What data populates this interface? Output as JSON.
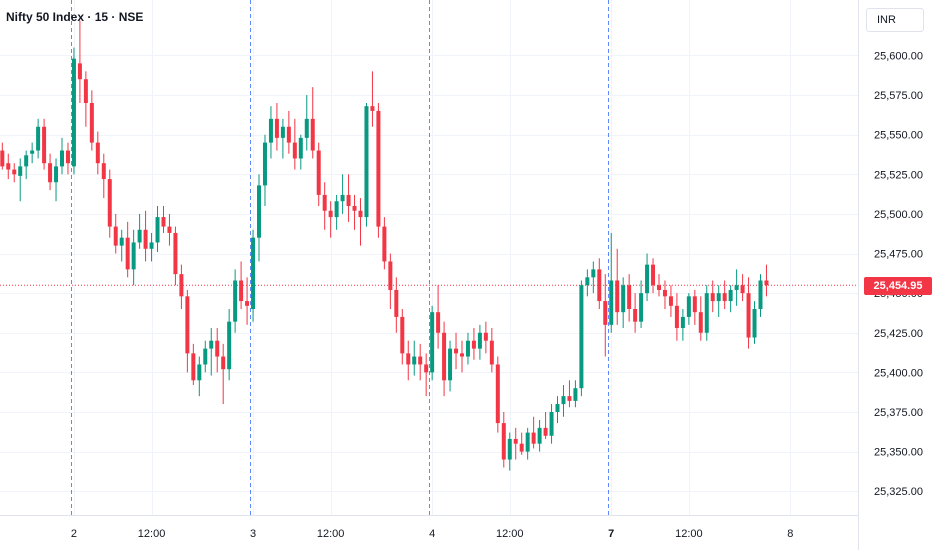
{
  "header": {
    "title": "Nifty 50 Index · 15 · NSE",
    "currency": "INR"
  },
  "last_price_label": "25,454.95",
  "colors": {
    "up": "#089981",
    "down": "#f23645",
    "grid": "#f0f3fa",
    "session_line": "#2962ff",
    "axis_text": "#131722",
    "last_price_line": "#f23645"
  },
  "chart_data": {
    "type": "candlestick",
    "ylim": [
      25310,
      25635
    ],
    "y_ticks": [
      "25,325.00",
      "25,350.00",
      "25,375.00",
      "25,400.00",
      "25,425.00",
      "25,450.00",
      "25,475.00",
      "25,500.00",
      "25,525.00",
      "25,550.00",
      "25,575.00",
      "25,600.00"
    ],
    "y_tick_values": [
      25325,
      25350,
      25375,
      25400,
      25425,
      25450,
      25475,
      25500,
      25525,
      25550,
      25575,
      25600
    ],
    "x_ticks": [
      {
        "label": "2",
        "bar": 12,
        "bold": false
      },
      {
        "label": "12:00",
        "bar": 25,
        "bold": false
      },
      {
        "label": "3",
        "bar": 42,
        "bold": false
      },
      {
        "label": "12:00",
        "bar": 55,
        "bold": false
      },
      {
        "label": "4",
        "bar": 72,
        "bold": false
      },
      {
        "label": "12:00",
        "bar": 85,
        "bold": false
      },
      {
        "label": "7",
        "bar": 102,
        "bold": true
      },
      {
        "label": "12:00",
        "bar": 115,
        "bold": false
      },
      {
        "label": "8",
        "bar": 132,
        "bold": false
      }
    ],
    "session_breaks": [
      11.5,
      41.5,
      71.5,
      101.5
    ],
    "last_price": 25454.95,
    "candles": [
      [
        25540,
        25545,
        25528,
        25530
      ],
      [
        25532,
        25538,
        25522,
        25528
      ],
      [
        25528,
        25532,
        25520,
        25525
      ],
      [
        25524,
        25535,
        25508,
        25530
      ],
      [
        25530,
        25540,
        25522,
        25537
      ],
      [
        25538,
        25545,
        25532,
        25540
      ],
      [
        25540,
        25560,
        25535,
        25555
      ],
      [
        25555,
        25560,
        25528,
        25532
      ],
      [
        25532,
        25538,
        25515,
        25520
      ],
      [
        25520,
        25535,
        25508,
        25530
      ],
      [
        25530,
        25548,
        25525,
        25540
      ],
      [
        25540,
        25545,
        25525,
        25532
      ],
      [
        25530,
        25605,
        25525,
        25598
      ],
      [
        25595,
        25622,
        25570,
        25585
      ],
      [
        25585,
        25590,
        25555,
        25570
      ],
      [
        25570,
        25578,
        25540,
        25545
      ],
      [
        25545,
        25552,
        25525,
        25532
      ],
      [
        25532,
        25538,
        25510,
        25522
      ],
      [
        25522,
        25528,
        25485,
        25492
      ],
      [
        25492,
        25500,
        25475,
        25480
      ],
      [
        25480,
        25490,
        25470,
        25485
      ],
      [
        25485,
        25495,
        25460,
        25465
      ],
      [
        25465,
        25490,
        25455,
        25482
      ],
      [
        25482,
        25500,
        25478,
        25490
      ],
      [
        25490,
        25502,
        25470,
        25478
      ],
      [
        25478,
        25488,
        25470,
        25482
      ],
      [
        25482,
        25505,
        25476,
        25498
      ],
      [
        25498,
        25505,
        25488,
        25492
      ],
      [
        25492,
        25500,
        25480,
        25488
      ],
      [
        25488,
        25492,
        25455,
        25462
      ],
      [
        25462,
        25468,
        25440,
        25448
      ],
      [
        25448,
        25452,
        25400,
        25412
      ],
      [
        25412,
        25418,
        25392,
        25395
      ],
      [
        25395,
        25410,
        25385,
        25405
      ],
      [
        25405,
        25420,
        25400,
        25415
      ],
      [
        25415,
        25428,
        25398,
        25420
      ],
      [
        25420,
        25428,
        25400,
        25410
      ],
      [
        25410,
        25418,
        25380,
        25402
      ],
      [
        25402,
        25440,
        25395,
        25432
      ],
      [
        25432,
        25465,
        25425,
        25458
      ],
      [
        25458,
        25470,
        25440,
        25445
      ],
      [
        25445,
        25460,
        25430,
        25442
      ],
      [
        25440,
        25490,
        25432,
        25485
      ],
      [
        25485,
        25525,
        25470,
        25518
      ],
      [
        25518,
        25550,
        25505,
        25545
      ],
      [
        25545,
        25568,
        25535,
        25560
      ],
      [
        25560,
        25570,
        25540,
        25548
      ],
      [
        25548,
        25560,
        25535,
        25555
      ],
      [
        25555,
        25565,
        25538,
        25545
      ],
      [
        25545,
        25560,
        25528,
        25535
      ],
      [
        25535,
        25550,
        25528,
        25548
      ],
      [
        25548,
        25575,
        25540,
        25560
      ],
      [
        25560,
        25580,
        25535,
        25540
      ],
      [
        25540,
        25545,
        25505,
        25512
      ],
      [
        25512,
        25520,
        25490,
        25502
      ],
      [
        25502,
        25508,
        25485,
        25498
      ],
      [
        25498,
        25512,
        25490,
        25508
      ],
      [
        25508,
        25525,
        25500,
        25512
      ],
      [
        25512,
        25525,
        25495,
        25505
      ],
      [
        25505,
        25512,
        25490,
        25502
      ],
      [
        25502,
        25510,
        25480,
        25498
      ],
      [
        25498,
        25570,
        25492,
        25568
      ],
      [
        25568,
        25590,
        25555,
        25565
      ],
      [
        25565,
        25570,
        25485,
        25492
      ],
      [
        25492,
        25498,
        25465,
        25470
      ],
      [
        25470,
        25475,
        25440,
        25452
      ],
      [
        25452,
        25460,
        25425,
        25435
      ],
      [
        25435,
        25440,
        25405,
        25412
      ],
      [
        25412,
        25420,
        25395,
        25405
      ],
      [
        25405,
        25420,
        25398,
        25410
      ],
      [
        25410,
        25418,
        25395,
        25405
      ],
      [
        25405,
        25412,
        25385,
        25400
      ],
      [
        25400,
        25442,
        25395,
        25438
      ],
      [
        25438,
        25455,
        25415,
        25425
      ],
      [
        25425,
        25432,
        25385,
        25395
      ],
      [
        25395,
        25420,
        25388,
        25415
      ],
      [
        25415,
        25425,
        25402,
        25412
      ],
      [
        25412,
        25420,
        25400,
        25410
      ],
      [
        25410,
        25425,
        25405,
        25420
      ],
      [
        25420,
        25428,
        25408,
        25415
      ],
      [
        25415,
        25430,
        25408,
        25425
      ],
      [
        25425,
        25432,
        25412,
        25420
      ],
      [
        25420,
        25428,
        25400,
        25405
      ],
      [
        25405,
        25410,
        25362,
        25368
      ],
      [
        25368,
        25375,
        25340,
        25345
      ],
      [
        25345,
        25362,
        25338,
        25358
      ],
      [
        25358,
        25365,
        25345,
        25355
      ],
      [
        25355,
        25362,
        25348,
        25350
      ],
      [
        25350,
        25365,
        25345,
        25362
      ],
      [
        25362,
        25372,
        25352,
        25355
      ],
      [
        25355,
        25370,
        25350,
        25365
      ],
      [
        25365,
        25375,
        25358,
        25360
      ],
      [
        25360,
        25380,
        25355,
        25375
      ],
      [
        25375,
        25385,
        25368,
        25380
      ],
      [
        25380,
        25392,
        25372,
        25385
      ],
      [
        25385,
        25395,
        25378,
        25382
      ],
      [
        25382,
        25395,
        25378,
        25390
      ],
      [
        25390,
        25458,
        25385,
        25455
      ],
      [
        25455,
        25465,
        25448,
        25460
      ],
      [
        25460,
        25470,
        25450,
        25465
      ],
      [
        25465,
        25472,
        25440,
        25445
      ],
      [
        25445,
        25462,
        25410,
        25430
      ],
      [
        25430,
        25488,
        25425,
        25458
      ],
      [
        25458,
        25478,
        25430,
        25438
      ],
      [
        25438,
        25460,
        25428,
        25455
      ],
      [
        25455,
        25462,
        25432,
        25440
      ],
      [
        25440,
        25450,
        25425,
        25432
      ],
      [
        25432,
        25458,
        25428,
        25450
      ],
      [
        25450,
        25475,
        25445,
        25468
      ],
      [
        25468,
        25472,
        25450,
        25455
      ],
      [
        25455,
        25462,
        25448,
        25452
      ],
      [
        25452,
        25458,
        25440,
        25448
      ],
      [
        25448,
        25455,
        25435,
        25442
      ],
      [
        25442,
        25450,
        25420,
        25428
      ],
      [
        25428,
        25440,
        25420,
        25435
      ],
      [
        25435,
        25450,
        25430,
        25448
      ],
      [
        25448,
        25452,
        25430,
        25438
      ],
      [
        25438,
        25448,
        25420,
        25425
      ],
      [
        25425,
        25455,
        25420,
        25450
      ],
      [
        25450,
        25458,
        25438,
        25445
      ],
      [
        25445,
        25455,
        25435,
        25450
      ],
      [
        25450,
        25458,
        25440,
        25445
      ],
      [
        25445,
        25455,
        25438,
        25452
      ],
      [
        25452,
        25465,
        25442,
        25455
      ],
      [
        25455,
        25462,
        25445,
        25450
      ],
      [
        25450,
        25460,
        25415,
        25422
      ],
      [
        25422,
        25445,
        25418,
        25440
      ],
      [
        25440,
        25462,
        25435,
        25458
      ],
      [
        25458,
        25468,
        25448,
        25455
      ]
    ]
  }
}
